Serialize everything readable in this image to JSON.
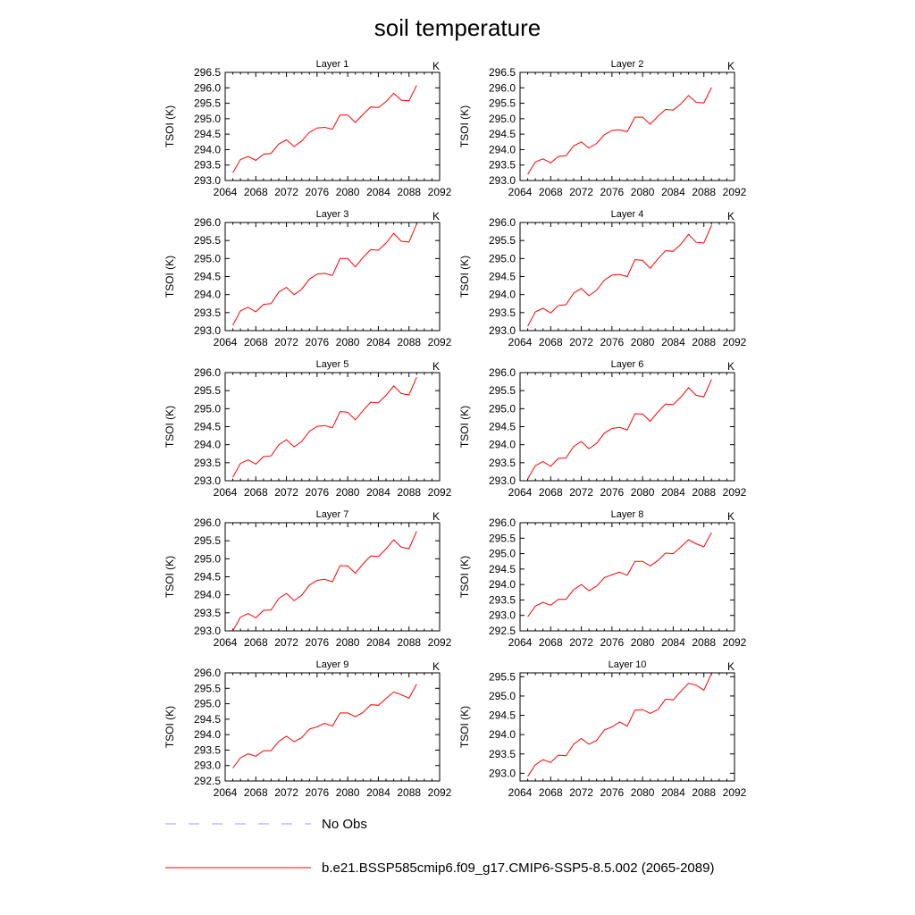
{
  "chart_data": {
    "type": "line",
    "title": "soil temperature",
    "units_label": "K",
    "ylabel": "TSOI  (K)",
    "xlim": [
      2064,
      2092
    ],
    "x_ticks": [
      2064,
      2068,
      2072,
      2076,
      2080,
      2084,
      2088,
      2092
    ],
    "x": [
      2065,
      2066,
      2067,
      2068,
      2069,
      2070,
      2071,
      2072,
      2073,
      2074,
      2075,
      2076,
      2077,
      2078,
      2079,
      2080,
      2081,
      2082,
      2083,
      2084,
      2085,
      2086,
      2087,
      2088,
      2089
    ],
    "panels": [
      {
        "title": "Layer 1",
        "ylim": [
          293.0,
          296.5
        ],
        "y_ticks": [
          "293.0",
          "293.5",
          "294.0",
          "294.5",
          "295.0",
          "295.5",
          "296.0",
          "296.5"
        ],
        "values": [
          293.25,
          293.68,
          293.78,
          293.65,
          293.85,
          293.88,
          294.18,
          294.32,
          294.1,
          294.28,
          294.56,
          294.7,
          294.72,
          294.66,
          295.12,
          295.12,
          294.88,
          295.14,
          295.38,
          295.36,
          295.55,
          295.82,
          295.6,
          295.58,
          296.08
        ]
      },
      {
        "title": "Layer 2",
        "ylim": [
          293.0,
          296.5
        ],
        "y_ticks": [
          "293.0",
          "293.5",
          "294.0",
          "294.5",
          "295.0",
          "295.5",
          "296.0",
          "296.5"
        ],
        "values": [
          293.2,
          293.6,
          293.7,
          293.57,
          293.78,
          293.8,
          294.12,
          294.25,
          294.05,
          294.2,
          294.48,
          294.62,
          294.64,
          294.58,
          295.05,
          295.05,
          294.82,
          295.08,
          295.3,
          295.28,
          295.48,
          295.75,
          295.53,
          295.51,
          296.01
        ]
      },
      {
        "title": "Layer 3",
        "ylim": [
          293.0,
          296.0
        ],
        "y_ticks": [
          "293.0",
          "293.5",
          "294.0",
          "294.5",
          "295.0",
          "295.5",
          "296.0"
        ],
        "values": [
          293.15,
          293.55,
          293.65,
          293.52,
          293.73,
          293.75,
          294.07,
          294.2,
          294.0,
          294.15,
          294.43,
          294.57,
          294.59,
          294.53,
          295.0,
          295.0,
          294.77,
          295.03,
          295.25,
          295.23,
          295.43,
          295.7,
          295.48,
          295.46,
          295.96
        ]
      },
      {
        "title": "Layer 4",
        "ylim": [
          293.0,
          296.0
        ],
        "y_ticks": [
          "293.0",
          "293.5",
          "294.0",
          "294.5",
          "295.0",
          "295.5",
          "296.0"
        ],
        "values": [
          293.12,
          293.52,
          293.62,
          293.49,
          293.7,
          293.72,
          294.04,
          294.17,
          293.97,
          294.12,
          294.4,
          294.54,
          294.56,
          294.5,
          294.97,
          294.95,
          294.73,
          294.99,
          295.22,
          295.2,
          295.4,
          295.67,
          295.45,
          295.43,
          295.92
        ]
      },
      {
        "title": "Layer 5",
        "ylim": [
          293.0,
          296.0
        ],
        "y_ticks": [
          "293.0",
          "293.5",
          "294.0",
          "294.5",
          "295.0",
          "295.5",
          "296.0"
        ],
        "values": [
          293.1,
          293.48,
          293.58,
          293.46,
          293.67,
          293.69,
          294.0,
          294.14,
          293.94,
          294.09,
          294.37,
          294.51,
          294.53,
          294.47,
          294.92,
          294.9,
          294.69,
          294.95,
          295.18,
          295.16,
          295.37,
          295.63,
          295.42,
          295.38,
          295.87
        ]
      },
      {
        "title": "Layer 6",
        "ylim": [
          293.0,
          296.0
        ],
        "y_ticks": [
          "293.0",
          "293.5",
          "294.0",
          "294.5",
          "295.0",
          "295.5",
          "296.0"
        ],
        "values": [
          293.05,
          293.42,
          293.53,
          293.4,
          293.62,
          293.63,
          293.95,
          294.09,
          293.89,
          294.04,
          294.32,
          294.45,
          294.48,
          294.41,
          294.86,
          294.85,
          294.65,
          294.91,
          295.13,
          295.11,
          295.32,
          295.58,
          295.37,
          295.33,
          295.81
        ]
      },
      {
        "title": "Layer 7",
        "ylim": [
          293.0,
          296.0
        ],
        "y_ticks": [
          "293.0",
          "293.5",
          "294.0",
          "294.5",
          "295.0",
          "295.5",
          "296.0"
        ],
        "values": [
          293.0,
          293.38,
          293.48,
          293.36,
          293.57,
          293.58,
          293.9,
          294.04,
          293.84,
          293.99,
          294.27,
          294.4,
          294.43,
          294.36,
          294.81,
          294.8,
          294.6,
          294.86,
          295.08,
          295.06,
          295.27,
          295.53,
          295.32,
          295.28,
          295.76
        ]
      },
      {
        "title": "Layer 8",
        "ylim": [
          292.5,
          296.0
        ],
        "y_ticks": [
          "292.5",
          "293.0",
          "293.5",
          "294.0",
          "294.5",
          "295.0",
          "295.5",
          "296.0"
        ],
        "values": [
          292.95,
          293.3,
          293.42,
          293.33,
          293.52,
          293.52,
          293.83,
          294.0,
          293.8,
          293.95,
          294.22,
          294.32,
          294.4,
          294.3,
          294.75,
          294.75,
          294.6,
          294.78,
          295.02,
          295.0,
          295.22,
          295.45,
          295.32,
          295.22,
          295.68
        ]
      },
      {
        "title": "Layer 9",
        "ylim": [
          292.5,
          296.0
        ],
        "y_ticks": [
          "292.5",
          "293.0",
          "293.5",
          "294.0",
          "294.5",
          "295.0",
          "295.5",
          "296.0"
        ],
        "values": [
          292.92,
          293.25,
          293.38,
          293.3,
          293.48,
          293.48,
          293.78,
          293.95,
          293.77,
          293.9,
          294.18,
          294.25,
          294.37,
          294.28,
          294.7,
          294.7,
          294.58,
          294.72,
          294.97,
          294.95,
          295.17,
          295.38,
          295.29,
          295.18,
          295.63
        ]
      },
      {
        "title": "Layer 10",
        "ylim": [
          292.8,
          295.6
        ],
        "y_ticks": [
          "293.0",
          "293.5",
          "294.0",
          "294.5",
          "295.0",
          "295.5"
        ],
        "values": [
          292.92,
          293.22,
          293.35,
          293.28,
          293.47,
          293.45,
          293.75,
          293.9,
          293.75,
          293.85,
          294.12,
          294.2,
          294.33,
          294.22,
          294.63,
          294.65,
          294.55,
          294.65,
          294.92,
          294.9,
          295.12,
          295.33,
          295.28,
          295.15,
          295.58
        ]
      }
    ],
    "legend": [
      {
        "label": "No Obs",
        "color": "#9999ff",
        "style": "dashed"
      },
      {
        "label": "b.e21.BSSP585cmip6.f09_g17.CMIP6-SSP5-8.5.002 (2065-2089)",
        "color": "#ff0000",
        "style": "solid"
      }
    ]
  }
}
